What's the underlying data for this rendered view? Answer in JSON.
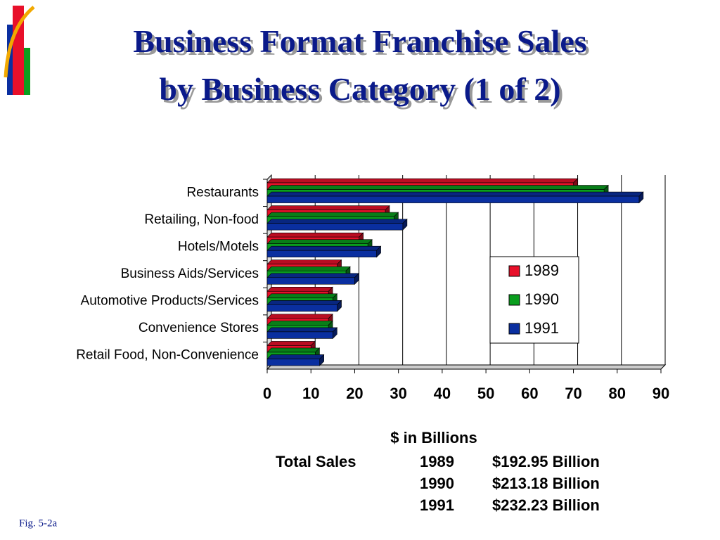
{
  "chart_data": {
    "type": "bar",
    "orientation": "horizontal",
    "depth3d": true,
    "title": "Business Format Franchise Sales",
    "subtitle": "by Business Category (1 of 2)",
    "x_label": "$ in Billions",
    "categories": [
      "Restaurants",
      "Retailing, Non-food",
      "Hotels/Motels",
      "Business Aids/Services",
      "Automotive Products/Services",
      "Convenience Stores",
      "Retail Food, Non-Convenience"
    ],
    "series": [
      {
        "name": "1989",
        "color": "#e8102a",
        "values": [
          70,
          27,
          21,
          16,
          14,
          14,
          10
        ]
      },
      {
        "name": "1990",
        "color": "#0a9e1e",
        "values": [
          77,
          29,
          23,
          18,
          15,
          14,
          11
        ]
      },
      {
        "name": "1991",
        "color": "#0a2fa0",
        "values": [
          85,
          31,
          25,
          20,
          16,
          15,
          12
        ]
      }
    ],
    "xlim": [
      0,
      90
    ],
    "xticks": [
      0,
      10,
      20,
      30,
      40,
      50,
      60,
      70,
      80,
      90
    ],
    "grid": true,
    "legend": "right"
  },
  "total_sales": {
    "label": "Total Sales",
    "rows": [
      [
        "1989",
        "$192.95 Billion"
      ],
      [
        "1990",
        "$213.18 Billion"
      ],
      [
        "1991",
        "$232.23 Billion"
      ]
    ]
  },
  "figure": "Fig. 5-2a"
}
